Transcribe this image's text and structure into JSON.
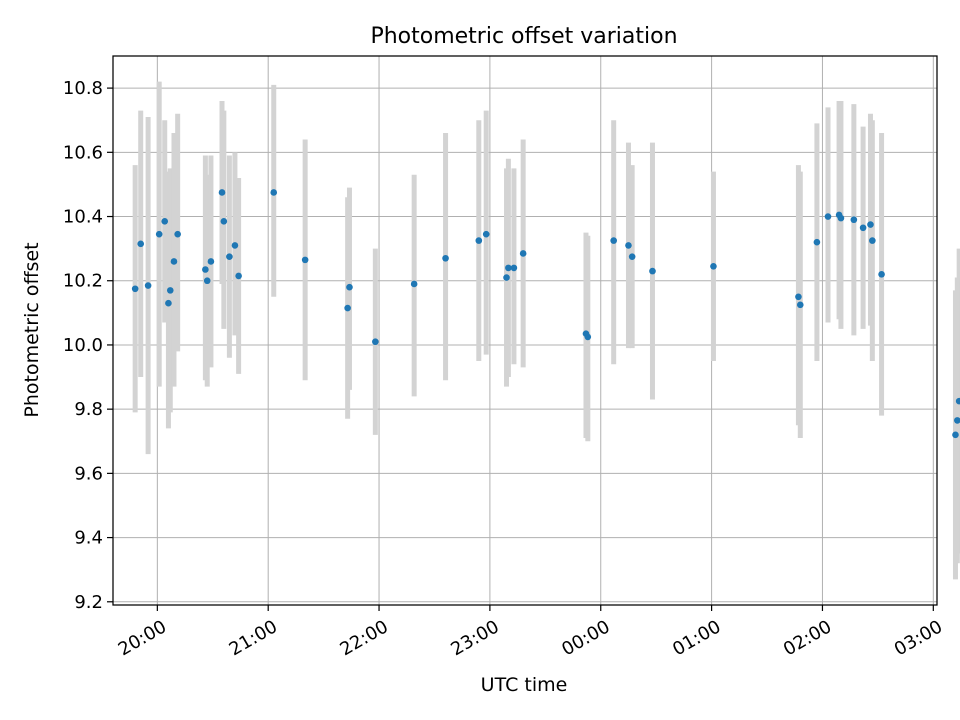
{
  "chart_data": {
    "type": "scatter",
    "title": "Photometric offset variation",
    "xlabel": "UTC time",
    "ylabel": "Photometric offset",
    "x_axis": {
      "type": "time",
      "range": [
        "19:36",
        "03:02"
      ],
      "ticks": [
        "20:00",
        "21:00",
        "22:00",
        "23:00",
        "00:00",
        "01:00",
        "02:00",
        "03:00"
      ],
      "tick_rotation_deg": 30
    },
    "y_axis": {
      "range": [
        9.19,
        10.9
      ],
      "ticks": [
        "9.2",
        "9.4",
        "9.6",
        "9.8",
        "10.0",
        "10.2",
        "10.4",
        "10.6",
        "10.8"
      ]
    },
    "grid": true,
    "errorbar_color": "#d3d3d3",
    "marker_color": "#1f77b4",
    "points": [
      {
        "t": "19:48",
        "y": 10.175,
        "lo": 9.79,
        "hi": 10.56
      },
      {
        "t": "19:51",
        "y": 10.315,
        "lo": 9.9,
        "hi": 10.73
      },
      {
        "t": "19:55",
        "y": 10.185,
        "lo": 9.66,
        "hi": 10.71
      },
      {
        "t": "20:01",
        "y": 10.345,
        "lo": 9.87,
        "hi": 10.82
      },
      {
        "t": "20:04",
        "y": 10.385,
        "lo": 10.07,
        "hi": 10.7
      },
      {
        "t": "20:06",
        "y": 10.13,
        "lo": 9.74,
        "hi": 10.54
      },
      {
        "t": "20:07",
        "y": 10.17,
        "lo": 9.79,
        "hi": 10.55
      },
      {
        "t": "20:09",
        "y": 10.26,
        "lo": 9.87,
        "hi": 10.66
      },
      {
        "t": "20:11",
        "y": 10.345,
        "lo": 9.98,
        "hi": 10.72
      },
      {
        "t": "20:26",
        "y": 10.235,
        "lo": 9.89,
        "hi": 10.59
      },
      {
        "t": "20:27",
        "y": 10.2,
        "lo": 9.87,
        "hi": 10.53
      },
      {
        "t": "20:29",
        "y": 10.26,
        "lo": 9.93,
        "hi": 10.59
      },
      {
        "t": "20:35",
        "y": 10.475,
        "lo": 10.19,
        "hi": 10.76
      },
      {
        "t": "20:36",
        "y": 10.385,
        "lo": 10.05,
        "hi": 10.73
      },
      {
        "t": "20:39",
        "y": 10.275,
        "lo": 9.96,
        "hi": 10.59
      },
      {
        "t": "20:42",
        "y": 10.31,
        "lo": 10.03,
        "hi": 10.6
      },
      {
        "t": "20:44",
        "y": 10.215,
        "lo": 9.91,
        "hi": 10.52
      },
      {
        "t": "21:03",
        "y": 10.475,
        "lo": 10.15,
        "hi": 10.81
      },
      {
        "t": "21:20",
        "y": 10.265,
        "lo": 9.89,
        "hi": 10.64
      },
      {
        "t": "21:43",
        "y": 10.115,
        "lo": 9.77,
        "hi": 10.46
      },
      {
        "t": "21:44",
        "y": 10.18,
        "lo": 9.86,
        "hi": 10.49
      },
      {
        "t": "21:58",
        "y": 10.01,
        "lo": 9.72,
        "hi": 10.3
      },
      {
        "t": "22:19",
        "y": 10.19,
        "lo": 9.84,
        "hi": 10.53
      },
      {
        "t": "22:36",
        "y": 10.27,
        "lo": 9.89,
        "hi": 10.66
      },
      {
        "t": "22:54",
        "y": 10.325,
        "lo": 9.95,
        "hi": 10.7
      },
      {
        "t": "22:58",
        "y": 10.345,
        "lo": 9.97,
        "hi": 10.73
      },
      {
        "t": "23:09",
        "y": 10.21,
        "lo": 9.87,
        "hi": 10.55
      },
      {
        "t": "23:10",
        "y": 10.24,
        "lo": 9.9,
        "hi": 10.58
      },
      {
        "t": "23:13",
        "y": 10.24,
        "lo": 9.94,
        "hi": 10.55
      },
      {
        "t": "23:18",
        "y": 10.285,
        "lo": 9.93,
        "hi": 10.64
      },
      {
        "t": "23:52",
        "y": 10.035,
        "lo": 9.71,
        "hi": 10.35
      },
      {
        "t": "23:53",
        "y": 10.025,
        "lo": 9.7,
        "hi": 10.34
      },
      {
        "t": "00:07",
        "y": 10.325,
        "lo": 9.94,
        "hi": 10.7
      },
      {
        "t": "00:15",
        "y": 10.31,
        "lo": 9.99,
        "hi": 10.63
      },
      {
        "t": "00:17",
        "y": 10.275,
        "lo": 9.99,
        "hi": 10.56
      },
      {
        "t": "00:28",
        "y": 10.23,
        "lo": 9.83,
        "hi": 10.63
      },
      {
        "t": "01:01",
        "y": 10.245,
        "lo": 9.95,
        "hi": 10.54
      },
      {
        "t": "01:47",
        "y": 10.15,
        "lo": 9.75,
        "hi": 10.56
      },
      {
        "t": "01:48",
        "y": 10.125,
        "lo": 9.71,
        "hi": 10.54
      },
      {
        "t": "01:57",
        "y": 10.32,
        "lo": 9.95,
        "hi": 10.69
      },
      {
        "t": "02:03",
        "y": 10.4,
        "lo": 10.07,
        "hi": 10.74
      },
      {
        "t": "02:09",
        "y": 10.405,
        "lo": 10.08,
        "hi": 10.76
      },
      {
        "t": "02:10",
        "y": 10.395,
        "lo": 10.05,
        "hi": 10.76
      },
      {
        "t": "02:17",
        "y": 10.39,
        "lo": 10.03,
        "hi": 10.75
      },
      {
        "t": "02:22",
        "y": 10.365,
        "lo": 10.05,
        "hi": 10.68
      },
      {
        "t": "02:26",
        "y": 10.375,
        "lo": 10.06,
        "hi": 10.72
      },
      {
        "t": "02:27",
        "y": 10.325,
        "lo": 9.95,
        "hi": 10.7
      },
      {
        "t": "02:32",
        "y": 10.22,
        "lo": 9.78,
        "hi": 10.66
      },
      {
        "t": "03:14",
        "y": 9.825,
        "lo": 9.35,
        "hi": 10.3
      },
      {
        "t": "03:13",
        "y": 9.765,
        "lo": 9.32,
        "hi": 10.21
      },
      {
        "t": "03:12",
        "y": 9.72,
        "lo": 9.27,
        "hi": 10.17
      }
    ]
  }
}
